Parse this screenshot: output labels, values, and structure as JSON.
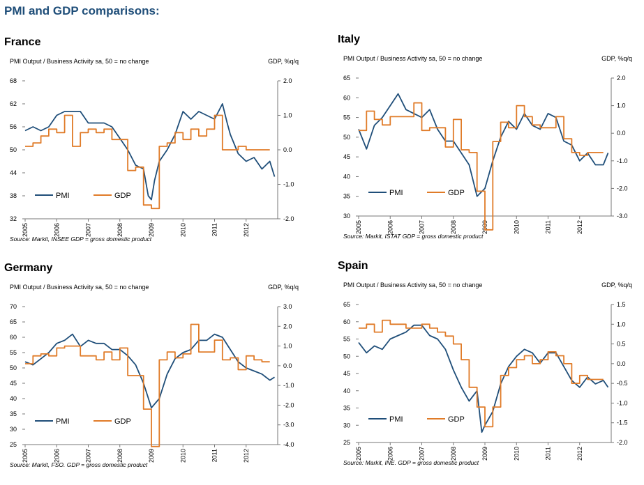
{
  "page_title": "PMI and GDP comparisons:",
  "colors": {
    "pmi": "#1f4e79",
    "gdp": "#e07b28"
  },
  "chart_data": [
    {
      "type": "line",
      "title": "France",
      "ylabel": "PMI Output / Business Activity sa, 50 = no change",
      "y2label": "GDP, %q/q",
      "source": "Source: Markit, INSEE GDP = gross domestic product",
      "ylim": [
        32,
        68
      ],
      "yticks": [
        32,
        38,
        44,
        50,
        56,
        62,
        68
      ],
      "y2lim": [
        -2.0,
        2.0
      ],
      "y2ticks": [
        "2.0",
        "1.0",
        "0.0",
        "-1.0",
        "-2.0"
      ],
      "xlim": [
        2005,
        2013
      ],
      "xticks": [
        "2005",
        "2006",
        "2007",
        "2008",
        "2009",
        "2010",
        "2011",
        "2012"
      ],
      "legend": {
        "pmi": "PMI",
        "gdp": "GDP",
        "position": "bottom-left"
      },
      "series": [
        {
          "name": "PMI",
          "axis": "left",
          "x": [
            2005,
            2005.25,
            2005.5,
            2005.75,
            2006,
            2006.25,
            2006.5,
            2006.75,
            2007,
            2007.25,
            2007.5,
            2007.75,
            2008,
            2008.25,
            2008.5,
            2008.75,
            2008.9,
            2009,
            2009.1,
            2009.25,
            2009.5,
            2009.75,
            2010,
            2010.25,
            2010.5,
            2010.75,
            2011,
            2011.25,
            2011.4,
            2011.5,
            2011.75,
            2012,
            2012.25,
            2012.5,
            2012.75,
            2012.9
          ],
          "values": [
            55,
            56,
            55,
            56,
            59,
            60,
            60,
            60,
            57,
            57,
            57,
            56,
            53,
            50,
            46,
            45,
            38,
            37,
            42,
            47,
            50,
            54,
            60,
            58,
            60,
            59,
            58,
            62,
            57,
            54,
            49,
            47,
            48,
            45,
            47,
            43
          ]
        },
        {
          "name": "GDP",
          "axis": "right",
          "x": [
            2005,
            2005.25,
            2005.5,
            2005.75,
            2006,
            2006.25,
            2006.5,
            2006.75,
            2007,
            2007.25,
            2007.5,
            2007.75,
            2008,
            2008.25,
            2008.5,
            2008.75,
            2009,
            2009.25,
            2009.5,
            2009.75,
            2010,
            2010.25,
            2010.5,
            2010.75,
            2011,
            2011.25,
            2011.5,
            2011.75,
            2012,
            2012.25,
            2012.5
          ],
          "values": [
            0.1,
            0.2,
            0.4,
            0.6,
            0.5,
            1.0,
            0.1,
            0.5,
            0.6,
            0.5,
            0.6,
            0.3,
            0.3,
            -0.6,
            -0.5,
            -1.6,
            -1.7,
            0.1,
            0.2,
            0.5,
            0.3,
            0.6,
            0.4,
            0.6,
            1.0,
            0.0,
            0.0,
            0.1,
            0.0,
            0.0,
            0.0
          ]
        }
      ]
    },
    {
      "type": "line",
      "title": "Italy",
      "ylabel": "PMI Output / Business Activity sa, 50 = no change",
      "y2label": "GDP, %q/q",
      "source": "Source: Markit, ISTAT GDP = gross domestic product",
      "ylim": [
        30,
        65
      ],
      "yticks": [
        30,
        35,
        40,
        45,
        50,
        55,
        60,
        65
      ],
      "y2lim": [
        -3.0,
        2.0
      ],
      "y2ticks": [
        "2.0",
        "1.0",
        "0.0",
        "-1.0",
        "-2.0",
        "-3.0"
      ],
      "xlim": [
        2005,
        2013
      ],
      "xticks": [
        "2005",
        "2006",
        "2007",
        "2008",
        "2009",
        "2010",
        "2011",
        "2012"
      ],
      "legend": {
        "pmi": "PMI",
        "gdp": "GDP",
        "position": "bottom-left"
      },
      "series": [
        {
          "name": "PMI",
          "axis": "left",
          "x": [
            2005,
            2005.25,
            2005.5,
            2005.75,
            2006,
            2006.25,
            2006.5,
            2006.75,
            2007,
            2007.25,
            2007.5,
            2007.75,
            2008,
            2008.25,
            2008.5,
            2008.75,
            2009,
            2009.25,
            2009.5,
            2009.75,
            2010,
            2010.25,
            2010.5,
            2010.75,
            2011,
            2011.25,
            2011.5,
            2011.75,
            2012,
            2012.25,
            2012.5,
            2012.75,
            2012.9
          ],
          "values": [
            52,
            47,
            53,
            55,
            58,
            61,
            57,
            56,
            55,
            57,
            52,
            49,
            49,
            46,
            43,
            35,
            37,
            44,
            50,
            54,
            52,
            56,
            53,
            52,
            56,
            55,
            49,
            48,
            44,
            46,
            43,
            43,
            46
          ]
        },
        {
          "name": "GDP",
          "axis": "right",
          "x": [
            2005,
            2005.25,
            2005.5,
            2005.75,
            2006,
            2006.25,
            2006.5,
            2006.75,
            2007,
            2007.25,
            2007.5,
            2007.75,
            2008,
            2008.25,
            2008.5,
            2008.75,
            2009,
            2009.25,
            2009.5,
            2009.75,
            2010,
            2010.25,
            2010.5,
            2010.75,
            2011,
            2011.25,
            2011.5,
            2011.75,
            2012,
            2012.25,
            2012.5
          ],
          "values": [
            0.1,
            0.8,
            0.5,
            0.3,
            0.6,
            0.6,
            0.6,
            1.1,
            0.1,
            0.2,
            0.2,
            -0.5,
            0.5,
            -0.6,
            -0.7,
            -2.1,
            -3.5,
            -0.3,
            0.4,
            0.2,
            1.0,
            0.6,
            0.3,
            0.2,
            0.2,
            0.6,
            -0.2,
            -0.7,
            -0.8,
            -0.7,
            -0.7
          ]
        }
      ]
    },
    {
      "type": "line",
      "title": "Germany",
      "ylabel": "PMI Output / Business Activity sa, 50 = no change",
      "y2label": "GDP, %q/q",
      "source": "Source: Markit, FSO. GDP = gross domestic product",
      "ylim": [
        25,
        70
      ],
      "yticks": [
        25,
        30,
        35,
        40,
        45,
        50,
        55,
        60,
        65,
        70
      ],
      "y2lim": [
        -4.0,
        3.0
      ],
      "y2ticks": [
        "3.0",
        "2.0",
        "1.0",
        "0.0",
        "-1.0",
        "-2.0",
        "-3.0",
        "-4.0"
      ],
      "xlim": [
        2005,
        2013
      ],
      "xticks": [
        "2005",
        "2006",
        "2007",
        "2008",
        "2009",
        "2010",
        "2011",
        "2012"
      ],
      "legend": {
        "pmi": "PMI",
        "gdp": "GDP",
        "position": "bottom-left"
      },
      "series": [
        {
          "name": "PMI",
          "axis": "left",
          "x": [
            2005,
            2005.25,
            2005.5,
            2005.75,
            2006,
            2006.25,
            2006.5,
            2006.75,
            2007,
            2007.25,
            2007.5,
            2007.75,
            2008,
            2008.25,
            2008.5,
            2008.75,
            2009,
            2009.25,
            2009.5,
            2009.75,
            2010,
            2010.25,
            2010.5,
            2010.75,
            2011,
            2011.25,
            2011.5,
            2011.75,
            2012,
            2012.25,
            2012.5,
            2012.75,
            2012.9
          ],
          "values": [
            52,
            51,
            53,
            55,
            58,
            59,
            61,
            57,
            59,
            58,
            58,
            56,
            56,
            54,
            51,
            45,
            37,
            40,
            48,
            53,
            55,
            56,
            59,
            59,
            61,
            60,
            56,
            52,
            50,
            49,
            48,
            46,
            47
          ]
        },
        {
          "name": "GDP",
          "axis": "right",
          "x": [
            2005,
            2005.25,
            2005.5,
            2005.75,
            2006,
            2006.25,
            2006.5,
            2006.75,
            2007,
            2007.25,
            2007.5,
            2007.75,
            2008,
            2008.25,
            2008.5,
            2008.75,
            2009,
            2009.25,
            2009.5,
            2009.75,
            2010,
            2010.25,
            2010.5,
            2010.75,
            2011,
            2011.25,
            2011.5,
            2011.75,
            2012,
            2012.25,
            2012.5
          ],
          "values": [
            0.1,
            0.5,
            0.6,
            0.5,
            0.9,
            1.0,
            1.0,
            0.5,
            0.5,
            0.3,
            0.7,
            0.3,
            0.9,
            -0.5,
            -0.5,
            -2.2,
            -4.1,
            0.3,
            0.7,
            0.4,
            0.6,
            2.1,
            0.7,
            0.7,
            1.3,
            0.3,
            0.4,
            -0.2,
            0.5,
            0.3,
            0.2
          ]
        }
      ]
    },
    {
      "type": "line",
      "title": "Spain",
      "ylabel": "PMI Output / Business Activity sa, 50 = no change",
      "y2label": "GDP, %q/q",
      "source": "Source: Markit, INE. GDP = gross domestic product",
      "ylim": [
        25,
        65
      ],
      "yticks": [
        25,
        30,
        35,
        40,
        45,
        50,
        55,
        60,
        65
      ],
      "y2lim": [
        -2.0,
        1.5
      ],
      "y2ticks": [
        "1.5",
        "1.0",
        "0.5",
        "0.0",
        "-0.5",
        "-1.0",
        "-1.5",
        "-2.0"
      ],
      "xlim": [
        2005,
        2013
      ],
      "xticks": [
        "2005",
        "2006",
        "2007",
        "2008",
        "2009",
        "2010",
        "2011",
        "2012"
      ],
      "legend": {
        "pmi": "PMI",
        "gdp": "GDP",
        "position": "bottom-left"
      },
      "series": [
        {
          "name": "PMI",
          "axis": "left",
          "x": [
            2005,
            2005.25,
            2005.5,
            2005.75,
            2006,
            2006.25,
            2006.5,
            2006.75,
            2007,
            2007.25,
            2007.5,
            2007.75,
            2008,
            2008.25,
            2008.5,
            2008.75,
            2008.9,
            2009,
            2009.25,
            2009.5,
            2009.75,
            2010,
            2010.25,
            2010.5,
            2010.75,
            2011,
            2011.25,
            2011.5,
            2011.75,
            2012,
            2012.25,
            2012.5,
            2012.75,
            2012.9
          ],
          "values": [
            54,
            51,
            53,
            52,
            55,
            56,
            57,
            59,
            59,
            56,
            55,
            52,
            46,
            41,
            37,
            40,
            28,
            30,
            34,
            42,
            47,
            50,
            52,
            51,
            48,
            51,
            51,
            47,
            43,
            41,
            44,
            42,
            43,
            41
          ]
        },
        {
          "name": "GDP",
          "axis": "right",
          "x": [
            2005,
            2005.25,
            2005.5,
            2005.75,
            2006,
            2006.25,
            2006.5,
            2006.75,
            2007,
            2007.25,
            2007.5,
            2007.75,
            2008,
            2008.25,
            2008.5,
            2008.75,
            2009,
            2009.25,
            2009.5,
            2009.75,
            2010,
            2010.25,
            2010.5,
            2010.75,
            2011,
            2011.25,
            2011.5,
            2011.75,
            2012,
            2012.25,
            2012.5
          ],
          "values": [
            0.9,
            1.0,
            0.8,
            1.1,
            1.0,
            1.0,
            0.9,
            0.9,
            1.0,
            0.9,
            0.8,
            0.7,
            0.5,
            0.1,
            -0.6,
            -1.1,
            -1.6,
            -1.1,
            -0.3,
            -0.1,
            0.1,
            0.2,
            0.0,
            0.1,
            0.3,
            0.2,
            0.0,
            -0.5,
            -0.3,
            -0.4,
            -0.4
          ]
        }
      ]
    }
  ]
}
